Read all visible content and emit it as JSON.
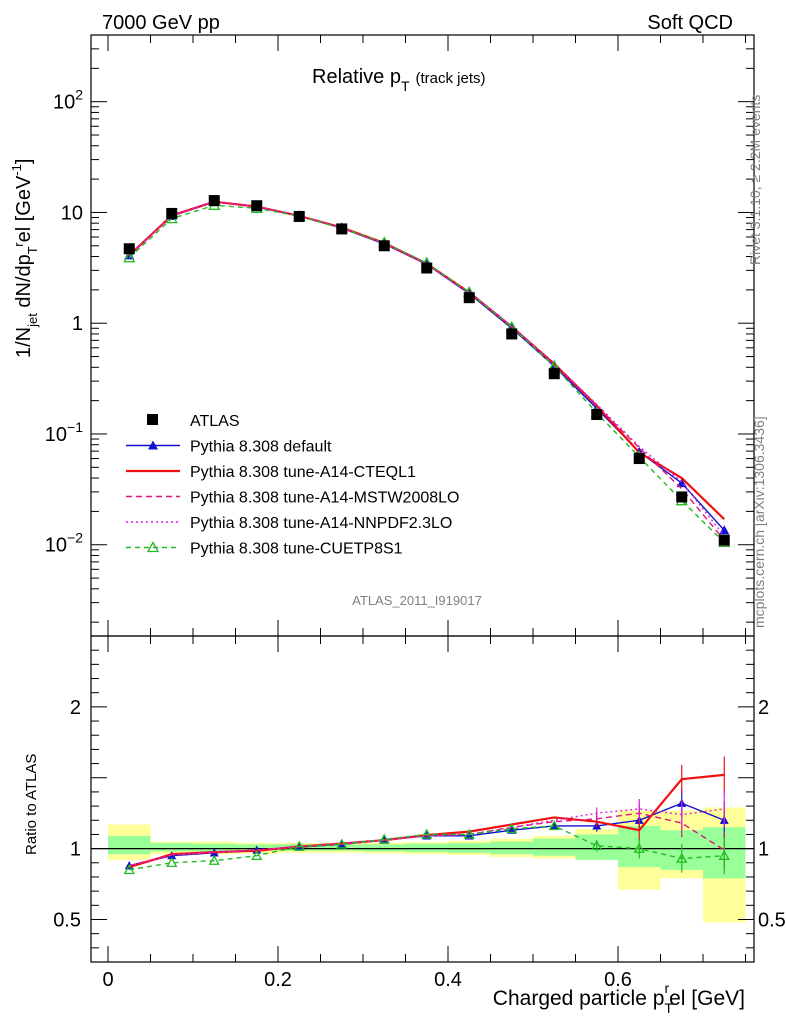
{
  "header": {
    "left": "7000 GeV pp",
    "right": "Soft QCD"
  },
  "side_texts": {
    "rivet": "Rivet 3.1.10, ≥ 2.2M events",
    "mcplots": "mcplots.cern.ch [arXiv:1306.3436]"
  },
  "analysis_label": "ATLAS_2011_I919017",
  "chart_data": [
    {
      "type": "line",
      "title": "Relative p_T (track jets)",
      "title_main": "Relative p",
      "title_sub": "T",
      "title_tail": "(track jets)",
      "ylabel": "1/N_jet dN/dp_T^rel [GeV^-1]",
      "yscale": "log",
      "ylim": [
        0.0015,
        400
      ],
      "xlim": [
        -0.02,
        0.76
      ],
      "ytick_labels": [
        {
          "value": 100,
          "base": "10",
          "exp": "2"
        },
        {
          "value": 10,
          "base": "10",
          "exp": ""
        },
        {
          "value": 1,
          "base": "1",
          "exp": ""
        },
        {
          "value": 0.1,
          "base": "10",
          "exp": "−1"
        },
        {
          "value": 0.01,
          "base": "10",
          "exp": "−2"
        }
      ],
      "x": [
        0.025,
        0.075,
        0.125,
        0.175,
        0.225,
        0.275,
        0.325,
        0.375,
        0.425,
        0.475,
        0.525,
        0.575,
        0.625,
        0.675,
        0.725
      ],
      "data": {
        "name": "ATLAS",
        "values": [
          4.7,
          9.8,
          12.8,
          11.5,
          9.2,
          7.1,
          5.0,
          3.15,
          1.7,
          0.8,
          0.35,
          0.15,
          0.06,
          0.027,
          0.011
        ]
      },
      "series": [
        {
          "name": "Pythia 8.308 default",
          "color": "#1010d0",
          "style": "solid-triangle",
          "values": [
            4.1,
            9.3,
            12.4,
            11.3,
            9.3,
            7.2,
            5.2,
            3.4,
            1.85,
            0.9,
            0.41,
            0.17,
            0.069,
            0.036,
            0.0135
          ]
        },
        {
          "name": "Pythia 8.308 tune-A14-CTEQL1",
          "color": "#ee1111",
          "style": "solid",
          "values": [
            4.1,
            9.4,
            12.5,
            11.3,
            9.3,
            7.3,
            5.3,
            3.45,
            1.9,
            0.93,
            0.43,
            0.18,
            0.068,
            0.04,
            0.017
          ]
        },
        {
          "name": "Pythia 8.308 tune-A14-MSTW2008LO",
          "color": "#e0157a",
          "style": "dashed",
          "values": [
            4.1,
            9.4,
            12.5,
            11.3,
            9.3,
            7.25,
            5.25,
            3.45,
            1.88,
            0.93,
            0.42,
            0.18,
            0.075,
            0.032,
            0.011
          ]
        },
        {
          "name": "Pythia 8.308 tune-A14-NNPDF2.3LO",
          "color": "#dd22dd",
          "style": "dotted",
          "values": [
            4.1,
            9.4,
            12.5,
            11.3,
            9.3,
            7.25,
            5.25,
            3.45,
            1.88,
            0.94,
            0.43,
            0.185,
            0.077,
            0.037,
            0.012
          ]
        },
        {
          "name": "Pythia 8.308 tune-CUETP8S1",
          "color": "#22bb22",
          "style": "dashed-open-triangle",
          "values": [
            3.9,
            8.8,
            11.6,
            10.9,
            9.25,
            7.2,
            5.35,
            3.5,
            1.9,
            0.92,
            0.41,
            0.155,
            0.062,
            0.025,
            0.0105
          ]
        }
      ]
    },
    {
      "type": "line",
      "ylabel": "Ratio to ATLAS",
      "xlabel": "Charged particle p_T^rel [GeV]",
      "xlabel_main": "Charged particle p",
      "xlabel_sub": "T",
      "xlabel_sup": "r",
      "xlabel_tail": "el [GeV]",
      "ylim": [
        0.2,
        2.5
      ],
      "xlim": [
        -0.02,
        0.76
      ],
      "reference": 1,
      "ytick_labels": [
        "2",
        "1",
        "0.5"
      ],
      "xtick_labels": [
        "0",
        "0.2",
        "0.4",
        "0.6"
      ],
      "band_x_edges": [
        0.0,
        0.05,
        0.1,
        0.15,
        0.2,
        0.25,
        0.3,
        0.35,
        0.4,
        0.45,
        0.5,
        0.55,
        0.6,
        0.65,
        0.7,
        0.75
      ],
      "band_stat": [
        [
          0.96,
          1.09
        ],
        [
          0.98,
          1.04
        ],
        [
          0.98,
          1.035
        ],
        [
          0.985,
          1.03
        ],
        [
          0.985,
          1.03
        ],
        [
          0.985,
          1.03
        ],
        [
          0.98,
          1.03
        ],
        [
          0.975,
          1.035
        ],
        [
          0.97,
          1.04
        ],
        [
          0.96,
          1.05
        ],
        [
          0.95,
          1.07
        ],
        [
          0.92,
          1.1
        ],
        [
          0.87,
          1.16
        ],
        [
          0.85,
          1.13
        ],
        [
          0.79,
          1.15
        ]
      ],
      "band_total": [
        [
          0.92,
          1.17
        ],
        [
          0.96,
          1.05
        ],
        [
          0.96,
          1.05
        ],
        [
          0.965,
          1.04
        ],
        [
          0.97,
          1.04
        ],
        [
          0.97,
          1.04
        ],
        [
          0.965,
          1.04
        ],
        [
          0.96,
          1.045
        ],
        [
          0.955,
          1.055
        ],
        [
          0.94,
          1.07
        ],
        [
          0.93,
          1.09
        ],
        [
          0.92,
          1.14
        ],
        [
          0.71,
          1.27
        ],
        [
          0.79,
          1.27
        ],
        [
          0.48,
          1.29
        ]
      ],
      "series": [
        {
          "name": "Pythia 8.308 default",
          "color": "#1010d0",
          "values": [
            0.88,
            0.95,
            0.97,
            0.99,
            1.01,
            1.03,
            1.06,
            1.09,
            1.09,
            1.13,
            1.16,
            1.16,
            1.2,
            1.32,
            1.2
          ]
        },
        {
          "name": "Pythia 8.308 tune-A14-CTEQL1",
          "color": "#ee1111",
          "values": [
            0.87,
            0.96,
            0.975,
            0.985,
            1.015,
            1.035,
            1.06,
            1.095,
            1.12,
            1.17,
            1.22,
            1.19,
            1.13,
            1.49,
            1.52
          ]
        },
        {
          "name": "Pythia 8.308 tune-A14-MSTW2008LO",
          "color": "#e0157a",
          "values": [
            0.88,
            0.955,
            0.975,
            0.99,
            1.015,
            1.03,
            1.06,
            1.09,
            1.1,
            1.15,
            1.19,
            1.21,
            1.25,
            1.18,
            0.99
          ]
        },
        {
          "name": "Pythia 8.308 tune-A14-NNPDF2.3LO",
          "color": "#dd22dd",
          "values": [
            0.88,
            0.955,
            0.975,
            0.99,
            1.015,
            1.035,
            1.06,
            1.09,
            1.1,
            1.15,
            1.2,
            1.25,
            1.28,
            1.24,
            1.28
          ]
        },
        {
          "name": "Pythia 8.308 tune-CUETP8S1",
          "color": "#22bb22",
          "values": [
            0.85,
            0.9,
            0.915,
            0.95,
            1.015,
            1.03,
            1.065,
            1.1,
            1.1,
            1.14,
            1.16,
            1.02,
            1.0,
            0.93,
            0.95
          ]
        }
      ]
    }
  ],
  "legend": {
    "data_label": "ATLAS"
  }
}
